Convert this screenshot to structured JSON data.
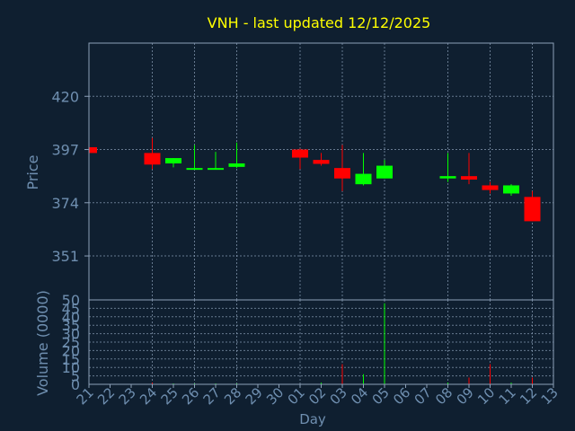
{
  "colors": {
    "background": "#0f1f30",
    "title": "#ffff00",
    "axis_text": "#6f8fb0",
    "frame": "#8ca0b8",
    "grid": "#8ca0b8",
    "up": "#00ff00",
    "down": "#ff0000"
  },
  "chart_data": [
    {
      "type": "candlestick",
      "title": "VNH - last updated 12/12/2025",
      "ylabel": "Price",
      "ylim": [
        332,
        443
      ],
      "yticks": [
        351,
        374,
        397,
        420
      ],
      "grid": true,
      "candles": [
        {
          "date": "21",
          "open": 398.0,
          "high": 398.8,
          "low": 394.8,
          "close": 395.5
        },
        {
          "date": "24",
          "open": 395.5,
          "high": 402.0,
          "low": 388.5,
          "close": 390.5
        },
        {
          "date": "25",
          "open": 391.0,
          "high": 393.3,
          "low": 389.3,
          "close": 393.3
        },
        {
          "date": "26",
          "open": 388.6,
          "high": 399.0,
          "low": 388.3,
          "close": 389.0
        },
        {
          "date": "27",
          "open": 388.6,
          "high": 396.0,
          "low": 388.3,
          "close": 389.0
        },
        {
          "date": "28",
          "open": 389.5,
          "high": 400.0,
          "low": 389.0,
          "close": 391.0
        },
        {
          "date": "01",
          "open": 397.0,
          "high": 397.4,
          "low": 388.5,
          "close": 393.5
        },
        {
          "date": "02",
          "open": 392.5,
          "high": 395.5,
          "low": 390.0,
          "close": 390.8
        },
        {
          "date": "03",
          "open": 389.0,
          "high": 399.0,
          "low": 379.0,
          "close": 384.5
        },
        {
          "date": "04",
          "open": 382.0,
          "high": 395.5,
          "low": 381.5,
          "close": 386.5
        },
        {
          "date": "05",
          "open": 384.5,
          "high": 392.5,
          "low": 384.5,
          "close": 390.0
        },
        {
          "date": "08",
          "open": 384.5,
          "high": 395.5,
          "low": 383.0,
          "close": 385.5
        },
        {
          "date": "09",
          "open": 385.5,
          "high": 395.5,
          "low": 382.0,
          "close": 384.0
        },
        {
          "date": "10",
          "open": 381.5,
          "high": 383.0,
          "low": 378.0,
          "close": 379.5
        },
        {
          "date": "11",
          "open": 378.0,
          "high": 382.0,
          "low": 377.0,
          "close": 381.5
        },
        {
          "date": "12",
          "open": 376.5,
          "high": 379.0,
          "low": 366.0,
          "close": 366.0
        }
      ]
    },
    {
      "type": "bar",
      "xlabel": "Day",
      "ylabel": "Volume (0000)",
      "ylim": [
        0,
        50
      ],
      "yticks": [
        0,
        5,
        10,
        15,
        20,
        25,
        30,
        35,
        40,
        45,
        50
      ],
      "grid": true,
      "categories": [
        "21",
        "22",
        "23",
        "24",
        "25",
        "26",
        "27",
        "28",
        "29",
        "30",
        "01",
        "02",
        "03",
        "04",
        "05",
        "06",
        "07",
        "08",
        "09",
        "10",
        "11",
        "12",
        "13"
      ],
      "values": [
        0,
        0,
        0,
        1,
        0.5,
        0.5,
        0.5,
        0.5,
        0,
        0,
        0,
        1,
        12,
        6,
        48,
        0,
        0,
        1,
        4,
        12,
        1,
        4,
        0
      ],
      "colors": [
        "down",
        "none",
        "none",
        "down",
        "up",
        "up",
        "up",
        "up",
        "none",
        "none",
        "down",
        "up",
        "down",
        "up",
        "up",
        "none",
        "none",
        "up",
        "down",
        "down",
        "up",
        "down",
        "none"
      ]
    }
  ]
}
